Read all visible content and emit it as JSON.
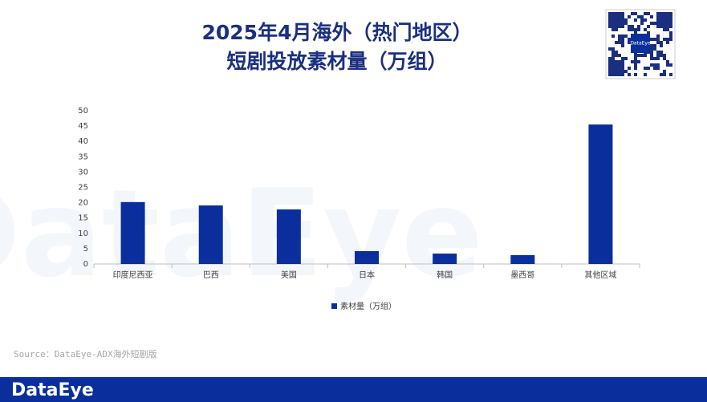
{
  "chart_data": {
    "type": "bar",
    "title": [
      "2025年4月海外（热门地区）",
      "短剧投放素材量（万组）"
    ],
    "categories": [
      "印度尼西亚",
      "巴西",
      "美国",
      "日本",
      "韩国",
      "墨西哥",
      "其他区域"
    ],
    "series": [
      {
        "name": "素材量（万组）",
        "color": "#0a2f9c",
        "values": [
          20.2,
          19.1,
          17.8,
          4.2,
          3.4,
          2.9,
          45.5
        ]
      }
    ],
    "ylim": [
      0,
      50
    ],
    "yticks": [
      0,
      5,
      10,
      15,
      20,
      25,
      30,
      35,
      40,
      45,
      50
    ],
    "grid": false,
    "legend": "bottom",
    "source": "Source：DataEye-ADX海外短剧版",
    "watermark": "DataEye",
    "footer_logo": "DataEye",
    "qr_label": "DataEye"
  }
}
